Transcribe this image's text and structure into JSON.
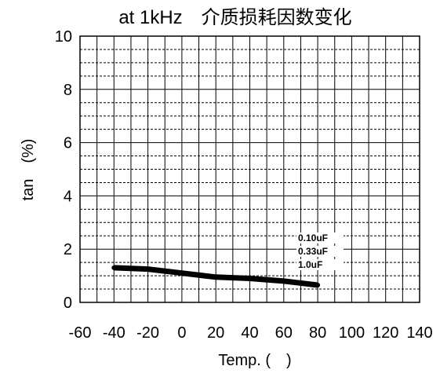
{
  "chart_data": {
    "type": "line",
    "title": "at 1kHz　介质损耗因数变化",
    "xlabel": "Temp. (　)",
    "ylabel": "tan　(%)",
    "xlim": [
      -60,
      140
    ],
    "ylim": [
      0,
      10
    ],
    "x_ticks": [
      "-60",
      "-40",
      "-20",
      "0",
      "20",
      "40",
      "60",
      "80",
      "100",
      "120",
      "140"
    ],
    "y_ticks": [
      "10",
      "8",
      "6",
      "4",
      "2",
      "0"
    ],
    "grid": true,
    "minor_x_step": 10,
    "minor_y_step": 0.5,
    "legend_labels": [
      "0.10uF",
      "0.33uF",
      "1.0uF"
    ],
    "series": [
      {
        "x": [
          -40,
          -20,
          0,
          20,
          40,
          60,
          80
        ],
        "y": [
          1.3,
          1.25,
          1.1,
          0.95,
          0.9,
          0.8,
          0.65
        ]
      }
    ]
  }
}
